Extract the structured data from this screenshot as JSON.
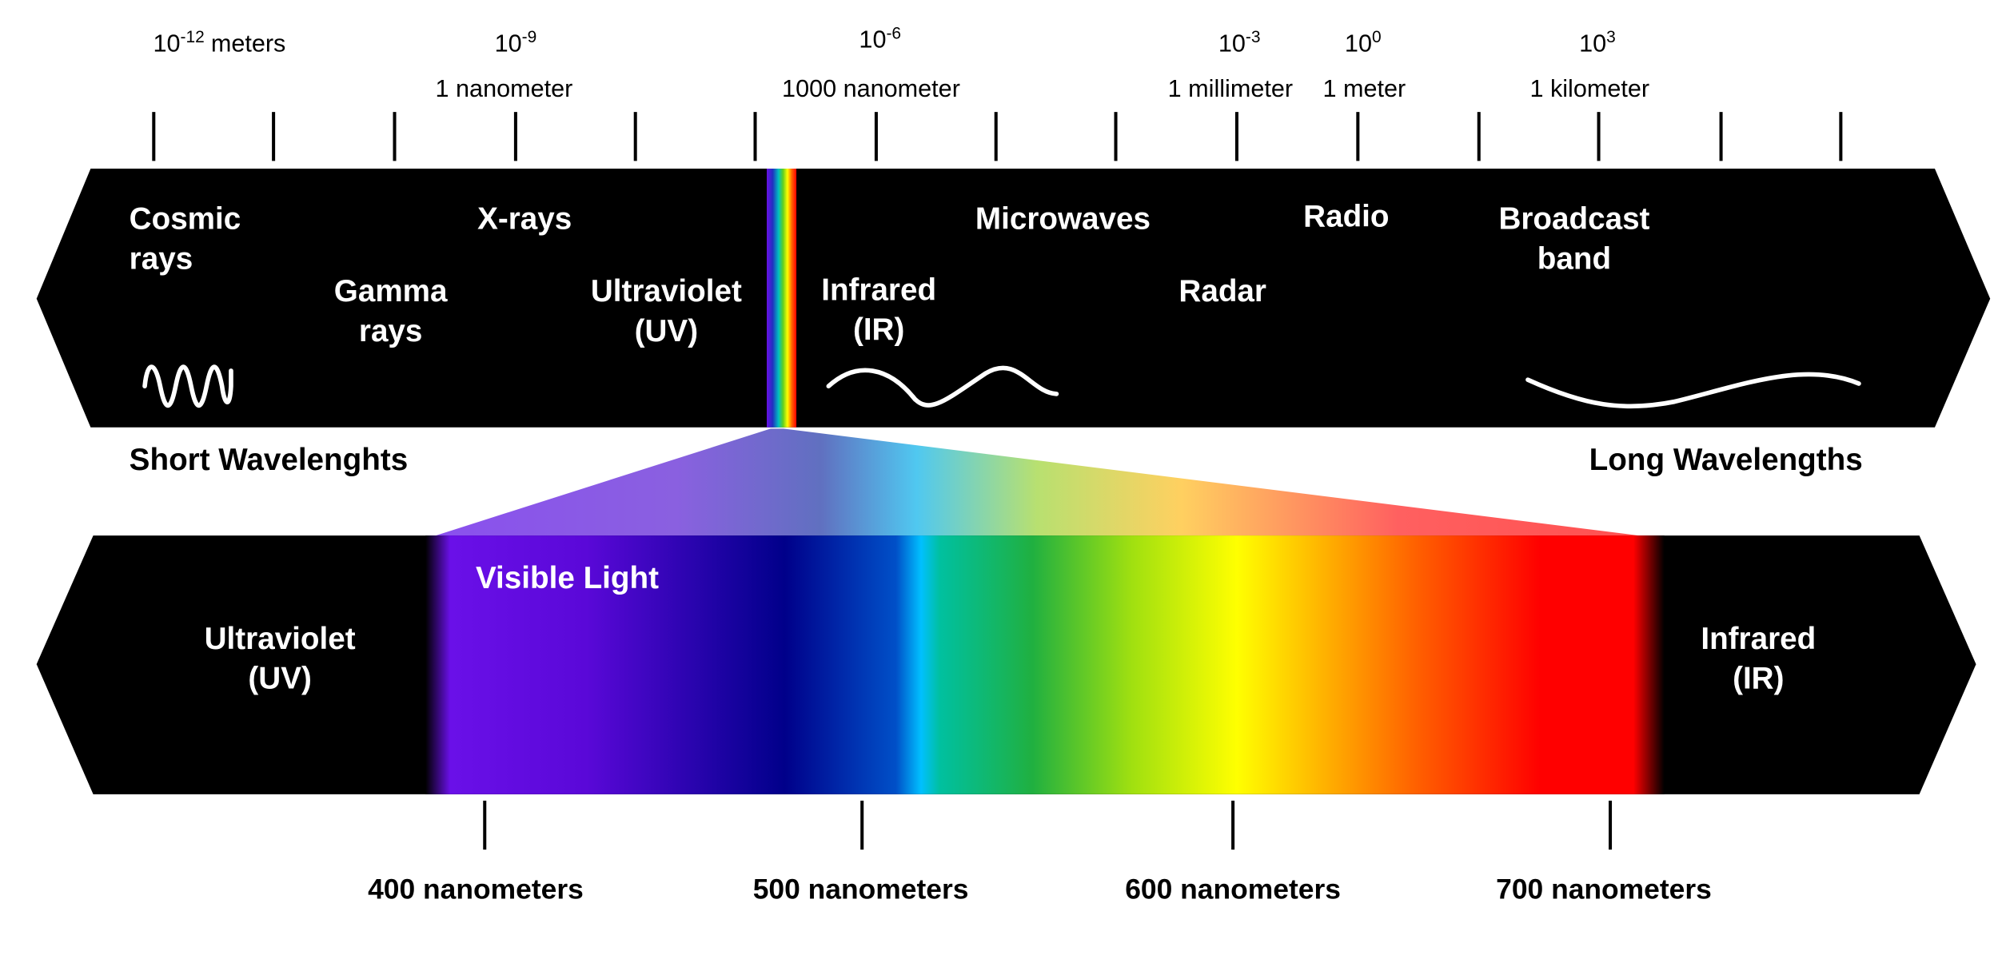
{
  "top_scale": [
    {
      "base": "10",
      "exp": "-12",
      "unit": "meters"
    },
    {
      "base": "10",
      "exp": "-9",
      "name": "1 nanometer"
    },
    {
      "base": "10",
      "exp": "-6",
      "name": "1000 nanometer"
    },
    {
      "base": "10",
      "exp": "-3",
      "name": "1 millimeter"
    },
    {
      "base": "10",
      "exp": "0",
      "name": "1 meter"
    },
    {
      "base": "10",
      "exp": "3",
      "name": "1 kilometer"
    }
  ],
  "bands": [
    [
      "Cosmic",
      "rays"
    ],
    [
      "Gamma",
      "rays"
    ],
    [
      "X-rays"
    ],
    [
      "Ultraviolet",
      "(UV)"
    ],
    [
      "Infrared",
      "(IR)"
    ],
    [
      "Microwaves"
    ],
    [
      "Radar"
    ],
    [
      "Radio"
    ],
    [
      "Broadcast",
      "band"
    ]
  ],
  "short_label": "Short Wavelenghts",
  "long_label": "Long Wavelengths",
  "visible": {
    "title": "Visible Light",
    "left": [
      "Ultraviolet",
      "(UV)"
    ],
    "right": [
      "Infrared",
      "(IR)"
    ],
    "ticks": [
      "400 nanometers",
      "500 nanometers",
      "600 nanometers",
      "700 nanometers"
    ]
  }
}
